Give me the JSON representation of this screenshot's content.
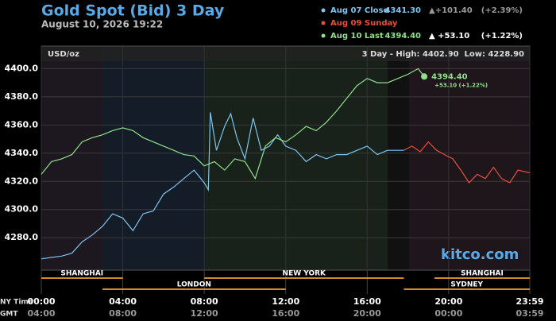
{
  "chart_data": {
    "type": "line",
    "title": "Gold Spot (Bid) 3 Day",
    "subtitle": "August 10, 2026 19:22",
    "unit": "USD/oz",
    "range_text": "3 Day - High: 4402.90  Low: 4228.90",
    "watermark": "kitco.com",
    "x_axis_label": "NY Time",
    "x2_axis_label": "GMT",
    "xlim": [
      0,
      23.983
    ],
    "xticks": [
      {
        "value": 0,
        "label": "00:00"
      },
      {
        "value": 4,
        "label": "04:00"
      },
      {
        "value": 8,
        "label": "08:00"
      },
      {
        "value": 12,
        "label": "12:00"
      },
      {
        "value": 16,
        "label": "16:00"
      },
      {
        "value": 20,
        "label": "20:00"
      },
      {
        "value": 23.983,
        "label": "23:59"
      }
    ],
    "x2ticks": [
      "04:00",
      "08:00",
      "12:00",
      "16:00",
      "20:00",
      "00:00",
      "03:59"
    ],
    "ylim": [
      4257,
      4416
    ],
    "yticks": [
      {
        "value": 4280,
        "label": "4280.0"
      },
      {
        "value": 4300,
        "label": "4300.0"
      },
      {
        "value": 4320,
        "label": "4320.0"
      },
      {
        "value": 4340,
        "label": "4340.0"
      },
      {
        "value": 4360,
        "label": "4360.0"
      },
      {
        "value": 4380,
        "label": "4380.0"
      },
      {
        "value": 4400,
        "label": "4400.0"
      }
    ],
    "grid": true,
    "sessions": [
      {
        "name": "SHANGHAI",
        "start": 0,
        "end": 4,
        "row": 0
      },
      {
        "name": "NEW YORK",
        "start": 8,
        "end": 17.8,
        "row": 0
      },
      {
        "name": "SHANGHAI",
        "start": 19.3,
        "end": 23.983,
        "row": 0
      },
      {
        "name": "LONDON",
        "start": 3,
        "end": 12,
        "row": 1
      },
      {
        "name": "SYDNEY",
        "start": 17.8,
        "end": 23.983,
        "row": 1
      }
    ],
    "series": [
      {
        "name": "Aug 07 Close",
        "color": "#7ec4ee",
        "last_label": "4341.30",
        "change": "▲+101.40",
        "pct": "(+2.39%)",
        "x": [
          0,
          0.5,
          1,
          1.5,
          2,
          2.5,
          3,
          3.5,
          4,
          4.5,
          5,
          5.5,
          6,
          6.5,
          7,
          7.5,
          8,
          8.2,
          8.3,
          8.6,
          9,
          9.3,
          9.6,
          10,
          10.4,
          10.8,
          11.2,
          11.6,
          12,
          12.5,
          13,
          13.5,
          14,
          14.5,
          15,
          15.5,
          16,
          16.5,
          17,
          17.8
        ],
        "values": [
          4265,
          4266,
          4267,
          4269,
          4277,
          4282,
          4288,
          4297,
          4294,
          4285,
          4297,
          4299,
          4311,
          4316,
          4322,
          4328,
          4319,
          4314,
          4369,
          4342,
          4359,
          4368,
          4351,
          4336,
          4365,
          4342,
          4345,
          4353,
          4345,
          4342,
          4334,
          4339,
          4336,
          4339,
          4339,
          4342,
          4345,
          4339,
          4342,
          4342
        ]
      },
      {
        "name": "Aug 09 Sunday",
        "color": "#e8503a",
        "x": [
          17.8,
          18.2,
          18.6,
          19,
          19.4,
          19.8,
          20.2,
          20.6,
          21,
          21.4,
          21.8,
          22.2,
          22.6,
          23,
          23.4,
          23.983
        ],
        "values": [
          4342,
          4345,
          4341,
          4348,
          4342,
          4339,
          4336,
          4328,
          4319,
          4325,
          4322,
          4330,
          4322,
          4319,
          4328,
          4326
        ]
      },
      {
        "name": "Aug 10 Last",
        "color": "#8fe08a",
        "last_label": "4394.40",
        "change": "▲ +53.10",
        "pct": "(+1.22%)",
        "x": [
          0,
          0.5,
          1,
          1.5,
          2,
          2.5,
          3,
          3.5,
          4,
          4.5,
          5,
          5.5,
          6,
          6.5,
          7,
          7.5,
          8,
          8.5,
          9,
          9.5,
          10,
          10.5,
          11,
          11.5,
          12,
          12.5,
          13,
          13.5,
          14,
          14.5,
          15,
          15.5,
          16,
          16.5,
          17,
          17.5,
          18,
          18.5,
          18.8
        ],
        "values": [
          4325,
          4334,
          4336,
          4339,
          4348,
          4351,
          4353,
          4356,
          4358,
          4356,
          4351,
          4348,
          4345,
          4342,
          4339,
          4338,
          4331,
          4334,
          4328,
          4336,
          4334,
          4322,
          4345,
          4351,
          4348,
          4353,
          4359,
          4356,
          4362,
          4370,
          4379,
          4388,
          4393,
          4390,
          4390,
          4393,
          4396,
          4400,
          4394.4
        ]
      }
    ],
    "annotation": {
      "value_text": "4394.40",
      "change_text": "+53.10 (+1.22%)"
    }
  }
}
